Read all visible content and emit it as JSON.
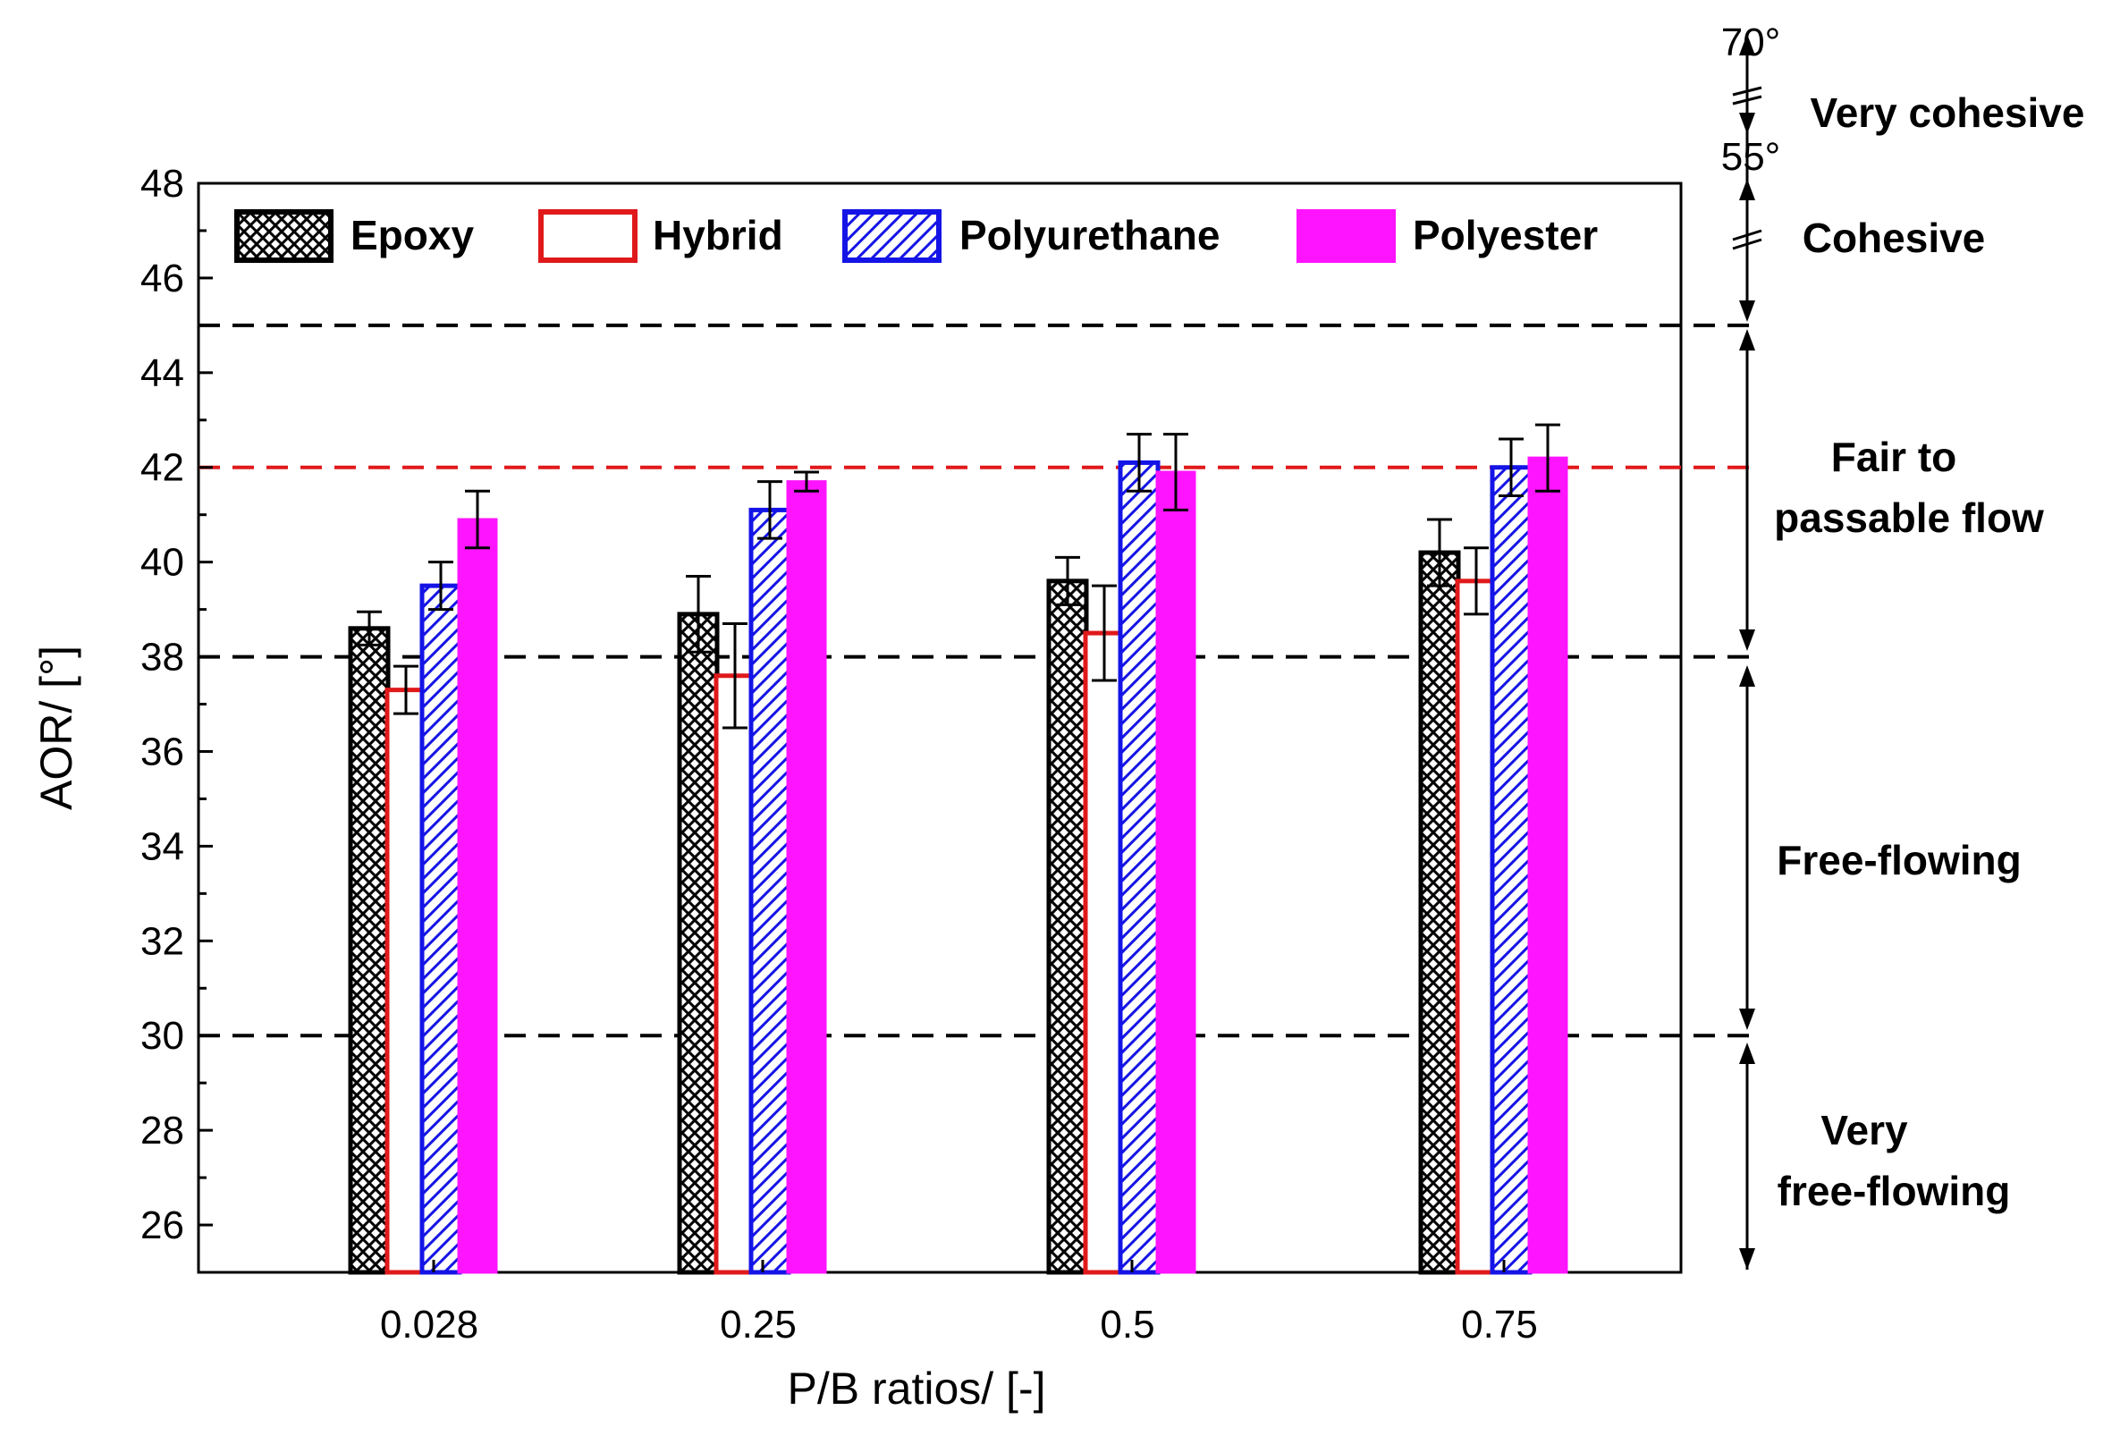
{
  "chart_data": {
    "type": "bar",
    "xlabel": "P/B ratios/ [-]",
    "ylabel": "AOR/ [°]",
    "categories": [
      "0.028",
      "0.25",
      "0.5",
      "0.75"
    ],
    "ylim": [
      25,
      48
    ],
    "yticks": [
      26,
      28,
      30,
      32,
      34,
      36,
      38,
      40,
      42,
      44,
      46,
      48
    ],
    "grid": false,
    "legend_position": "top",
    "series": [
      {
        "name": "Epoxy",
        "color": "#000000",
        "pattern": "crosshatch",
        "values": [
          38.6,
          38.9,
          39.6,
          40.2
        ],
        "errors": [
          0.35,
          0.8,
          0.5,
          0.7
        ]
      },
      {
        "name": "Hybrid",
        "color": "#e0191b",
        "pattern": "none",
        "values": [
          37.3,
          37.6,
          38.5,
          39.6
        ],
        "errors": [
          0.5,
          1.1,
          1.0,
          0.7
        ]
      },
      {
        "name": "Polyurethane",
        "color": "#1414e6",
        "pattern": "diagonal",
        "values": [
          39.5,
          41.1,
          42.1,
          42.0
        ],
        "errors": [
          0.5,
          0.6,
          0.6,
          0.6
        ]
      },
      {
        "name": "Polyester",
        "color": "#ff14ff",
        "pattern": "solid",
        "values": [
          40.9,
          41.7,
          41.9,
          42.2
        ],
        "errors": [
          0.6,
          0.2,
          0.8,
          0.7
        ]
      }
    ],
    "reference_lines": [
      {
        "value": 45,
        "color": "#000000"
      },
      {
        "value": 42,
        "color": "#e0191b"
      },
      {
        "value": 38,
        "color": "#000000"
      },
      {
        "value": 30,
        "color": "#000000"
      }
    ],
    "zones": [
      {
        "label_lines": [
          "Very cohesive"
        ]
      },
      {
        "label_lines": [
          "Cohesive"
        ]
      },
      {
        "label_lines": [
          "Fair to",
          "passable flow"
        ]
      },
      {
        "label_lines": [
          "Free-flowing"
        ]
      },
      {
        "label_lines": [
          "Very",
          "free-flowing"
        ]
      }
    ],
    "angle_labels": [
      "70°",
      "55°"
    ]
  }
}
